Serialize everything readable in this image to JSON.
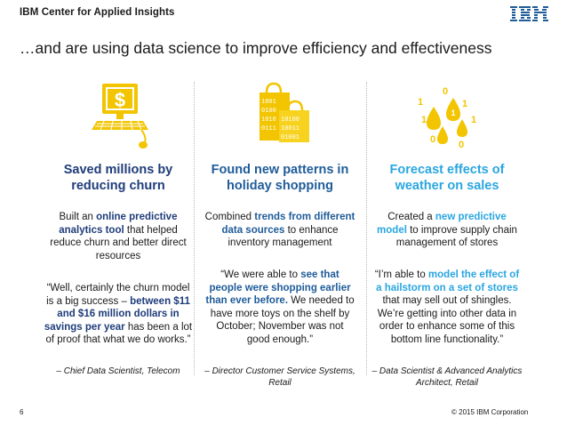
{
  "header": {
    "brand_ibm": "IBM",
    "brand_rest": "Center for Applied Insights",
    "logo_text": "IBM"
  },
  "title": "…and are using data science to improve efficiency and effectiveness",
  "columns": [
    {
      "icon": "computer-dollar-icon",
      "heading_line1": "Saved millions by",
      "heading_line2": "reducing churn",
      "desc": {
        "pre": "Built an ",
        "hl": "online predictive analytics tool",
        "post": " that helped reduce churn and better direct resources"
      },
      "quote": {
        "pre": "“Well, certainly the churn model is a big success – ",
        "hl": "between $11 and $16 million dollars in savings per year",
        "post": " has been a lot of proof that what we do works.”"
      },
      "attribution": "– Chief Data Scientist, Telecom"
    },
    {
      "icon": "shopping-bags-icon",
      "heading_line1": "Found new patterns in",
      "heading_line2": "holiday shopping",
      "desc": {
        "pre": "Combined ",
        "hl": "trends from different data sources",
        "post": " to enhance inventory management"
      },
      "quote": {
        "pre": "“We were able to ",
        "hl": "see that people were shopping earlier than ever before.",
        "post": " We needed to have more toys on the shelf by October; November was not good enough.”"
      },
      "attribution": "– Director Customer Service Systems, Retail"
    },
    {
      "icon": "rain-drops-binary-icon",
      "heading_line1": "Forecast effects of",
      "heading_line2": "weather on sales",
      "desc": {
        "pre": "Created a ",
        "hl": "new predictive model",
        "post": " to improve supply chain management of stores"
      },
      "quote": {
        "pre": "“I’m able to ",
        "hl": "model the effect of a hailstorm on a set of stores",
        "post": " that may sell out of shingles. We’re getting into other data in order to enhance some of this bottom line functionality.”"
      },
      "attribution": "– Data Scientist & Advanced Analytics Architect, Retail"
    }
  ],
  "footer": {
    "page_number": "6",
    "copyright": "© 2015 IBM Corporation"
  },
  "colors": {
    "heading_col1": "#1f3d7a",
    "heading_col2": "#1f5c99",
    "heading_col3": "#2aa6e0",
    "icon_yellow": "#f2c500"
  }
}
